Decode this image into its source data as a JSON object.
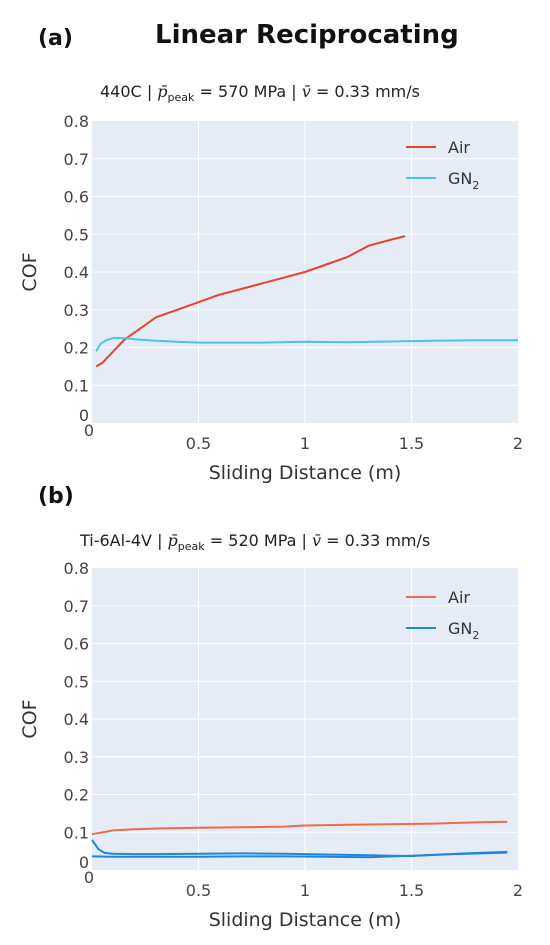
{
  "figure_title": "Linear Reciprocating",
  "colors": {
    "plot_bg": "#e5ecf6",
    "grid": "#ffffff",
    "air_a": "#e8412c",
    "gn2_a": "#4cc3e8",
    "air_b": "#ef6a4c",
    "gn2_b": "#1f86dc"
  },
  "chart_data": [
    {
      "panel_label": "(a)",
      "type": "line",
      "subtitle": {
        "material": "440C",
        "p_symbol": "p̄",
        "p_sub": "peak",
        "p_value": "= 570 MPa",
        "v_symbol": "v̄",
        "v_value": "= 0.33 mm/s",
        "sep": "|"
      },
      "xlabel": "Sliding Distance (m)",
      "ylabel": "COF",
      "xlim": [
        0,
        2
      ],
      "ylim": [
        0,
        0.8
      ],
      "xticks": [
        {
          "v": 0,
          "label": "0"
        },
        {
          "v": 0.5,
          "label": "0.5"
        },
        {
          "v": 1,
          "label": "1"
        },
        {
          "v": 1.5,
          "label": "1.5"
        },
        {
          "v": 2,
          "label": "2"
        }
      ],
      "yticks": [
        {
          "v": 0,
          "label": "0"
        },
        {
          "v": 0.1,
          "label": "0.1"
        },
        {
          "v": 0.2,
          "label": "0.2"
        },
        {
          "v": 0.3,
          "label": "0.3"
        },
        {
          "v": 0.4,
          "label": "0.4"
        },
        {
          "v": 0.5,
          "label": "0.5"
        },
        {
          "v": 0.6,
          "label": "0.6"
        },
        {
          "v": 0.7,
          "label": "0.7"
        },
        {
          "v": 0.8,
          "label": "0.8"
        }
      ],
      "grid": true,
      "legend_position": "top-right",
      "series": [
        {
          "name": "Air",
          "name_sub": "",
          "color": "#e8412c",
          "x": [
            0.02,
            0.05,
            0.1,
            0.15,
            0.2,
            0.25,
            0.3,
            0.4,
            0.5,
            0.6,
            0.7,
            0.8,
            0.9,
            1.0,
            1.1,
            1.2,
            1.3,
            1.4,
            1.47
          ],
          "y": [
            0.15,
            0.16,
            0.19,
            0.22,
            0.24,
            0.26,
            0.28,
            0.3,
            0.32,
            0.34,
            0.355,
            0.37,
            0.385,
            0.4,
            0.42,
            0.44,
            0.47,
            0.485,
            0.495
          ]
        },
        {
          "name": "GN",
          "name_sub": "2",
          "color": "#4cc3e8",
          "x": [
            0.02,
            0.04,
            0.07,
            0.1,
            0.15,
            0.2,
            0.3,
            0.4,
            0.5,
            0.6,
            0.8,
            1.0,
            1.2,
            1.4,
            1.6,
            1.8,
            2.0
          ],
          "y": [
            0.19,
            0.21,
            0.22,
            0.225,
            0.225,
            0.222,
            0.218,
            0.215,
            0.213,
            0.213,
            0.213,
            0.215,
            0.214,
            0.216,
            0.218,
            0.219,
            0.219
          ]
        }
      ]
    },
    {
      "panel_label": "(b)",
      "type": "line",
      "subtitle": {
        "material": "Ti-6Al-4V",
        "p_symbol": "p̄",
        "p_sub": "peak",
        "p_value": "= 520 MPa",
        "v_symbol": "v̄",
        "v_value": "= 0.33 mm/s",
        "sep": "|"
      },
      "xlabel": "Sliding Distance (m)",
      "ylabel": "COF",
      "xlim": [
        0,
        2
      ],
      "ylim": [
        0,
        0.8
      ],
      "xticks": [
        {
          "v": 0,
          "label": "0"
        },
        {
          "v": 0.5,
          "label": "0.5"
        },
        {
          "v": 1,
          "label": "1"
        },
        {
          "v": 1.5,
          "label": "1.5"
        },
        {
          "v": 2,
          "label": "2"
        }
      ],
      "yticks": [
        {
          "v": 0,
          "label": "0"
        },
        {
          "v": 0.1,
          "label": "0.1"
        },
        {
          "v": 0.2,
          "label": "0.2"
        },
        {
          "v": 0.3,
          "label": "0.3"
        },
        {
          "v": 0.4,
          "label": "0.4"
        },
        {
          "v": 0.5,
          "label": "0.5"
        },
        {
          "v": 0.6,
          "label": "0.6"
        },
        {
          "v": 0.7,
          "label": "0.7"
        },
        {
          "v": 0.8,
          "label": "0.8"
        }
      ],
      "grid": true,
      "legend_position": "top-right",
      "series": [
        {
          "name": "Air",
          "name_sub": "",
          "color": "#ef6a4c",
          "x": [
            0.0,
            0.05,
            0.1,
            0.2,
            0.3,
            0.5,
            0.7,
            0.9,
            1.0,
            1.2,
            1.4,
            1.6,
            1.8,
            1.95
          ],
          "y": [
            0.095,
            0.1,
            0.105,
            0.108,
            0.11,
            0.112,
            0.113,
            0.115,
            0.118,
            0.12,
            0.121,
            0.123,
            0.126,
            0.128
          ]
        },
        {
          "name": "GN",
          "name_sub": "2",
          "color": "#1f86dc",
          "x": [
            0.0,
            0.03,
            0.06,
            0.1,
            0.2,
            0.3,
            0.5,
            0.7,
            0.9,
            1.0,
            1.2,
            1.4,
            1.5,
            1.6,
            1.8,
            1.95
          ],
          "y": [
            0.08,
            0.055,
            0.045,
            0.043,
            0.042,
            0.042,
            0.043,
            0.044,
            0.043,
            0.042,
            0.04,
            0.038,
            0.037,
            0.04,
            0.045,
            0.048
          ]
        },
        {
          "name": "",
          "name_sub": "",
          "color": "#1f86dc",
          "x": [
            0.0,
            0.1,
            0.3,
            0.5,
            0.7,
            0.9,
            1.1,
            1.3,
            1.5,
            1.7,
            1.95
          ],
          "y": [
            0.036,
            0.035,
            0.035,
            0.035,
            0.036,
            0.036,
            0.035,
            0.034,
            0.038,
            0.042,
            0.046
          ]
        }
      ]
    }
  ]
}
